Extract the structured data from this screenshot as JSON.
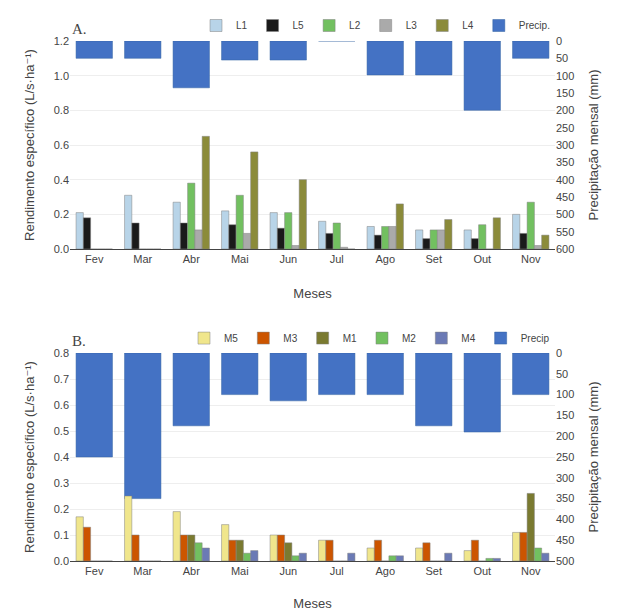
{
  "chart_data": [
    {
      "type": "bar",
      "title": "A.",
      "xlabel": "Meses",
      "ylabel": "Rendimento específico (L/s·ha⁻¹)",
      "y2label": "Precipitação mensal (mm)",
      "categories": [
        "Fev",
        "Mar",
        "Abr",
        "Mai",
        "Jun",
        "Jul",
        "Ago",
        "Set",
        "Out",
        "Nov"
      ],
      "series": [
        {
          "name": "L1",
          "color": "#b8d4e8",
          "values": [
            0.21,
            0.31,
            0.27,
            0.22,
            0.21,
            0.16,
            0.13,
            0.11,
            0.11,
            0.2
          ]
        },
        {
          "name": "L5",
          "color": "#1a1a1a",
          "values": [
            0.18,
            0.15,
            0.15,
            0.14,
            0.12,
            0.09,
            0.08,
            0.06,
            0.06,
            0.09
          ]
        },
        {
          "name": "L2",
          "color": "#72c060",
          "values": [
            0.0,
            0.0,
            0.38,
            0.31,
            0.21,
            0.15,
            0.13,
            0.11,
            0.14,
            0.27
          ]
        },
        {
          "name": "L3",
          "color": "#aaaaaa",
          "values": [
            0.0,
            0.0,
            0.11,
            0.09,
            0.02,
            0.01,
            0.13,
            0.11,
            0.0,
            0.02
          ]
        },
        {
          "name": "L4",
          "color": "#8b8b3a",
          "values": [
            0.0,
            0.0,
            0.65,
            0.56,
            0.4,
            0.0,
            0.26,
            0.17,
            0.18,
            0.08
          ]
        },
        {
          "name": "Precip.",
          "color": "#4472c4",
          "axis": "y2",
          "values": [
            50,
            50,
            135,
            55,
            55,
            0,
            98,
            98,
            200,
            50
          ]
        }
      ],
      "ylim": [
        0.0,
        1.2
      ],
      "yticks": [
        {
          "value": 0,
          "label": "0.0"
        },
        0.2,
        0.4,
        0.6,
        0.8,
        {
          "value": 1,
          "label": "1.0"
        },
        1.2
      ],
      "y2lim": [
        600,
        0
      ],
      "y2ticks": [
        0,
        50,
        100,
        150,
        200,
        250,
        300,
        350,
        400,
        450,
        500,
        550,
        600
      ],
      "grid": true,
      "legend": "top"
    },
    {
      "type": "bar",
      "title": "B.",
      "xlabel": "Meses",
      "ylabel": "Rendimento específico (L/s·ha⁻¹)",
      "y2label": "Precipitação mensal (mm)",
      "categories": [
        "Fev",
        "Mar",
        "Abr",
        "Mai",
        "Jun",
        "Jul",
        "Ago",
        "Set",
        "Out",
        "Nov"
      ],
      "series": [
        {
          "name": "M5",
          "color": "#f0e68c",
          "values": [
            0.17,
            0.25,
            0.19,
            0.14,
            0.1,
            0.08,
            0.05,
            0.05,
            0.04,
            0.11
          ]
        },
        {
          "name": "M3",
          "color": "#cc5500",
          "values": [
            0.13,
            0.1,
            0.1,
            0.08,
            0.1,
            0.08,
            0.08,
            0.07,
            0.08,
            0.11
          ]
        },
        {
          "name": "M1",
          "color": "#7a7a30",
          "values": [
            0.0,
            0.0,
            0.1,
            0.08,
            0.07,
            0.0,
            0.0,
            0.0,
            0.0,
            0.26
          ]
        },
        {
          "name": "M2",
          "color": "#72c060",
          "values": [
            0.0,
            0.0,
            0.07,
            0.03,
            0.02,
            0.0,
            0.02,
            0.0,
            0.01,
            0.05
          ]
        },
        {
          "name": "M4",
          "color": "#6b7ab5",
          "values": [
            0.0,
            0.0,
            0.05,
            0.04,
            0.03,
            0.03,
            0.02,
            0.03,
            0.01,
            0.03
          ]
        },
        {
          "name": "Precip",
          "color": "#4472c4",
          "axis": "y2",
          "values": [
            250,
            350,
            175,
            100,
            115,
            100,
            100,
            175,
            190,
            100
          ]
        }
      ],
      "ylim": [
        0.0,
        0.8
      ],
      "yticks": [
        {
          "value": 0,
          "label": "0.0"
        },
        0.1,
        0.2,
        0.3,
        0.4,
        0.5,
        0.6,
        0.7,
        0.8
      ],
      "y2lim": [
        500,
        0
      ],
      "y2ticks": [
        0,
        50,
        100,
        150,
        200,
        250,
        300,
        350,
        400,
        450,
        500
      ],
      "grid": true,
      "legend": "top"
    }
  ]
}
